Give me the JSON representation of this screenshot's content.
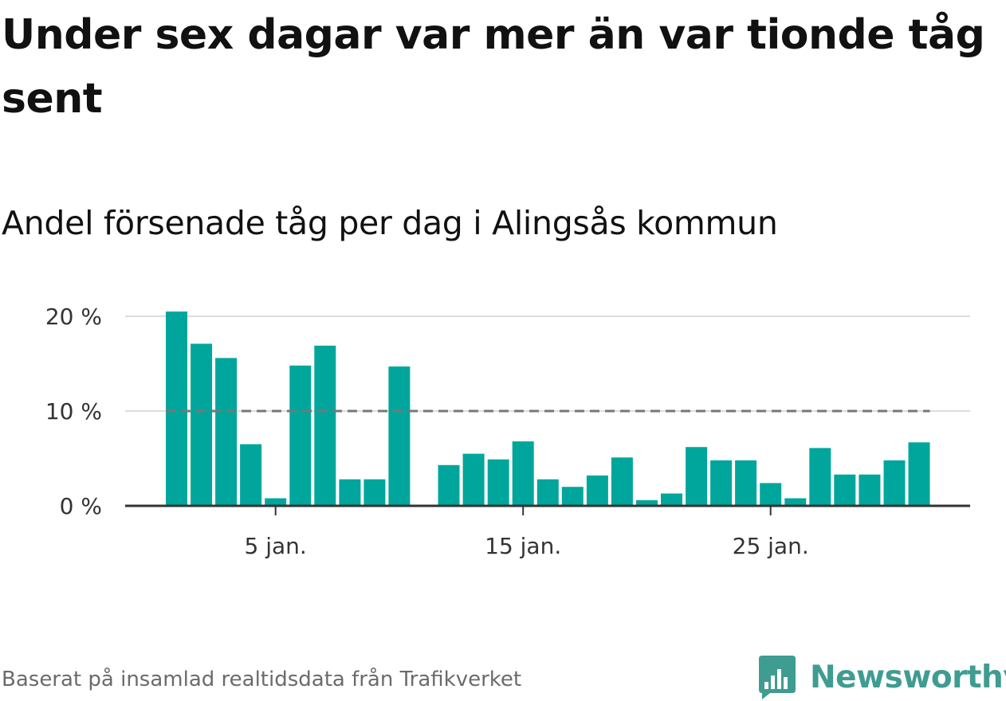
{
  "header": {
    "title": "Under sex dagar var mer än var tionde tåg sent",
    "subtitle": "Andel försenade tåg per dag i Alingsås kommun"
  },
  "footer": {
    "source": "Baserat på insamlad realtidsdata från Trafikverket",
    "brand": "Newsworthy"
  },
  "colors": {
    "bar": "#00a69c",
    "reference_line": "#777777",
    "grid": "#dddddd",
    "axis": "#333333",
    "brand": "#3f9c91"
  },
  "icons": {
    "brand_logo": "bar-chart-speech-bubble-icon"
  },
  "chart_data": {
    "type": "bar",
    "title": "Under sex dagar var mer än var tionde tåg sent",
    "subtitle": "Andel försenade tåg per dag i Alingsås kommun",
    "x": [
      "1 jan.",
      "2 jan.",
      "3 jan.",
      "4 jan.",
      "5 jan.",
      "6 jan.",
      "7 jan.",
      "8 jan.",
      "9 jan.",
      "10 jan.",
      "11 jan.",
      "12 jan.",
      "13 jan.",
      "14 jan.",
      "15 jan.",
      "16 jan.",
      "17 jan.",
      "18 jan.",
      "19 jan.",
      "20 jan.",
      "21 jan.",
      "22 jan.",
      "23 jan.",
      "24 jan.",
      "25 jan.",
      "26 jan.",
      "27 jan.",
      "28 jan.",
      "29 jan.",
      "30 jan.",
      "31 jan."
    ],
    "values": [
      20.5,
      17.1,
      15.6,
      6.5,
      0.8,
      14.8,
      16.9,
      2.8,
      2.8,
      14.7,
      null,
      4.3,
      5.5,
      4.9,
      6.8,
      2.8,
      2.0,
      3.2,
      5.1,
      0.6,
      1.3,
      6.2,
      4.8,
      4.8,
      2.4,
      0.8,
      6.1,
      3.3,
      3.3,
      4.8,
      6.7
    ],
    "unit": "%",
    "ylim": [
      0,
      20
    ],
    "yticks": [
      0,
      10,
      20
    ],
    "ytick_labels": [
      "0 %",
      "10 %",
      "20 %"
    ],
    "xticks": [
      "5 jan.",
      "15 jan.",
      "25 jan."
    ],
    "reference_line": {
      "value": 10,
      "style": "dashed"
    },
    "grid": true,
    "legend": "none"
  }
}
